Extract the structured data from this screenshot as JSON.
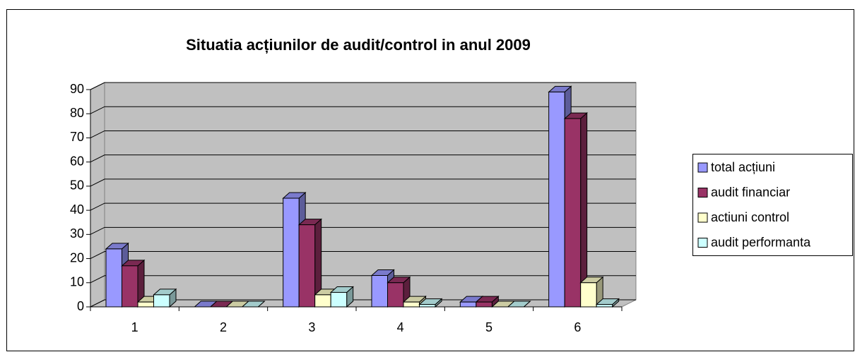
{
  "chart_data": {
    "type": "bar3d",
    "title": "Situatia acțiunilor de audit/control in anul 2009",
    "categories": [
      "1",
      "2",
      "3",
      "4",
      "5",
      "6"
    ],
    "series": [
      {
        "name": "total acțiuni",
        "color": "#9999ff",
        "values": [
          24,
          0,
          45,
          13,
          2,
          89
        ]
      },
      {
        "name": "audit financiar",
        "color": "#993366",
        "values": [
          17,
          0,
          34,
          10,
          2,
          78
        ]
      },
      {
        "name": "actiuni control",
        "color": "#ffffcc",
        "values": [
          2,
          0,
          5,
          2,
          0,
          10
        ]
      },
      {
        "name": "audit performanta",
        "color": "#ccffff",
        "values": [
          5,
          0,
          6,
          1,
          0,
          1
        ]
      }
    ],
    "ylim": [
      0,
      90
    ],
    "yticks": [
      0,
      10,
      20,
      30,
      40,
      50,
      60,
      70,
      80,
      90
    ],
    "grid": true,
    "legend": "right"
  }
}
